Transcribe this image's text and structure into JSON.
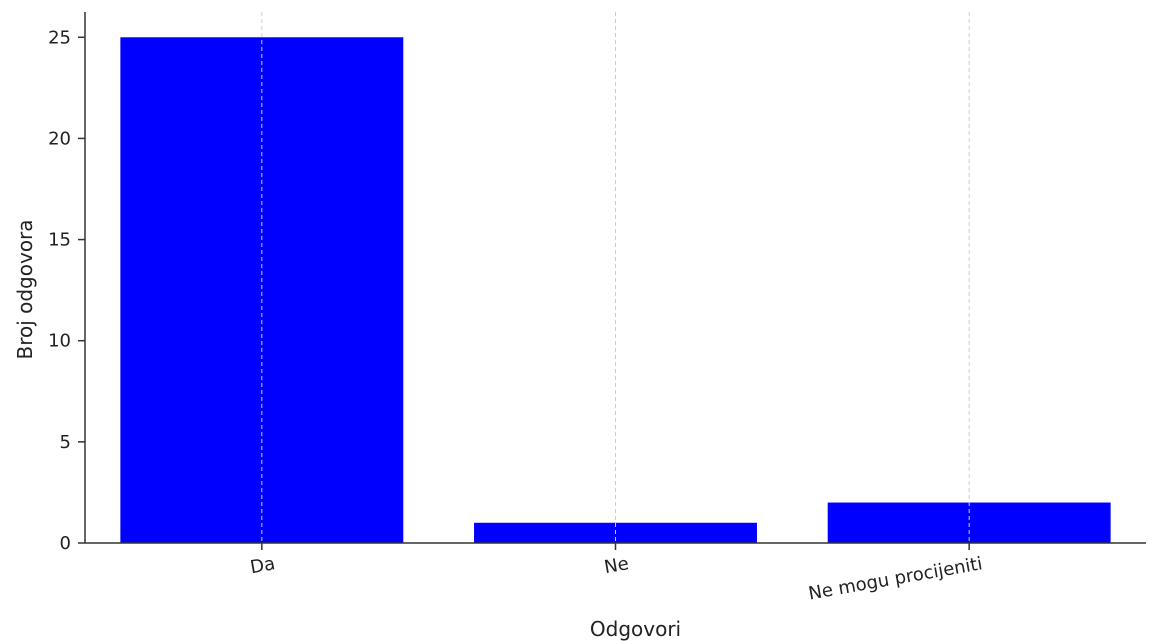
{
  "chart_data": {
    "type": "bar",
    "title": "",
    "xlabel": "Odgovori",
    "ylabel": "Broj odgovora",
    "categories": [
      "Da",
      "Ne",
      "Ne mogu procijeniti"
    ],
    "values": [
      25,
      1,
      2
    ],
    "ylim": [
      0,
      26.25
    ],
    "yticks": [
      0,
      5,
      10,
      15,
      20,
      25
    ],
    "ytick_labels": [
      "0",
      "5",
      "10",
      "15",
      "20",
      "25"
    ],
    "grid": "vertical dashed, light gray",
    "legend": "none",
    "bar_color": "#0000ff",
    "grid_color": "#cccccc",
    "axis_color": "#333333"
  }
}
